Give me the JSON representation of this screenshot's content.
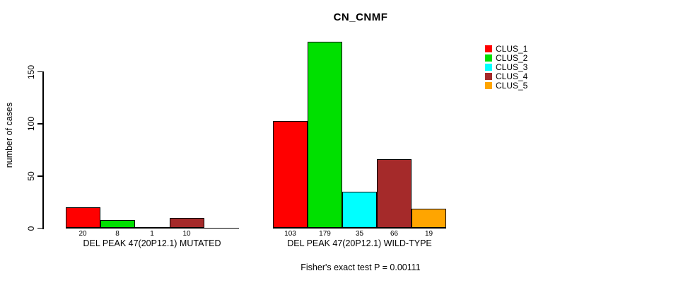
{
  "figure": {
    "title": "CN_CNMF",
    "ylabel": "number of cases",
    "footer": "Fisher's exact test P = 0.00111"
  },
  "chart_data": {
    "type": "bar",
    "title": "CN_CNMF",
    "xlabel": "",
    "ylabel": "number of cases",
    "ylim": [
      0,
      185
    ],
    "yticks": [
      0,
      50,
      100,
      150
    ],
    "grid": false,
    "legend_position": "right",
    "series": [
      {
        "name": "CLUS_1",
        "color": "#FF0000"
      },
      {
        "name": "CLUS_2",
        "color": "#00E000"
      },
      {
        "name": "CLUS_3",
        "color": "#00FFFF"
      },
      {
        "name": "CLUS_4",
        "color": "#A52A2A"
      },
      {
        "name": "CLUS_5",
        "color": "#FFA500"
      }
    ],
    "groups": [
      {
        "label": "DEL PEAK 47(20P12.1) MUTATED",
        "values": [
          20,
          8,
          1,
          10,
          0
        ],
        "bar_labels": [
          "20",
          "8",
          "1",
          "10",
          ""
        ]
      },
      {
        "label": "DEL PEAK 47(20P12.1) WILD-TYPE",
        "values": [
          103,
          179,
          35,
          66,
          19
        ],
        "bar_labels": [
          "103",
          "179",
          "35",
          "66",
          "19"
        ]
      }
    ],
    "annotation": "Fisher's exact test P = 0.00111"
  }
}
